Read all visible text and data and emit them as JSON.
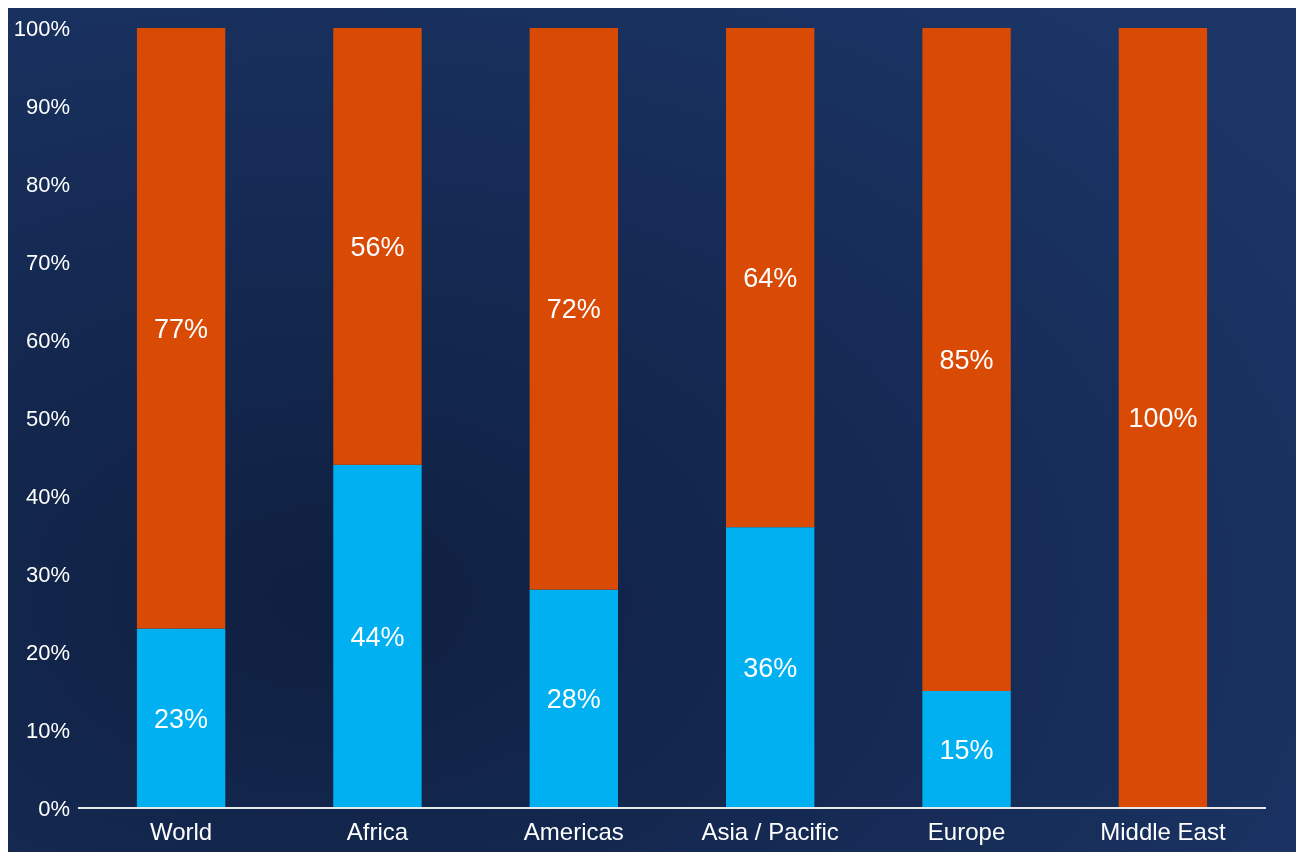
{
  "chart_data": {
    "type": "bar",
    "stacked": true,
    "categories": [
      "World",
      "Africa",
      "Americas",
      "Asia / Pacific",
      "Europe",
      "Middle East"
    ],
    "series": [
      {
        "color": "#00b0f0",
        "values": [
          23,
          44,
          28,
          36,
          15,
          0
        ],
        "value_labels": [
          "23%",
          "44%",
          "28%",
          "36%",
          "15%",
          null
        ]
      },
      {
        "color": "#d94a05",
        "values": [
          77,
          56,
          72,
          64,
          85,
          100
        ],
        "value_labels": [
          "77%",
          "56%",
          "72%",
          "64%",
          "85%",
          "100%"
        ]
      }
    ],
    "ylim": [
      0,
      100
    ],
    "yticks": [
      {
        "value": 0,
        "label": "0%"
      },
      {
        "value": 10,
        "label": "10%"
      },
      {
        "value": 20,
        "label": "20%"
      },
      {
        "value": 30,
        "label": "30%"
      },
      {
        "value": 40,
        "label": "40%"
      },
      {
        "value": 50,
        "label": "50%"
      },
      {
        "value": 60,
        "label": "60%"
      },
      {
        "value": 70,
        "label": "70%"
      },
      {
        "value": 80,
        "label": "80%"
      },
      {
        "value": 90,
        "label": "90%"
      },
      {
        "value": 100,
        "label": "100%"
      }
    ],
    "grid": false
  }
}
